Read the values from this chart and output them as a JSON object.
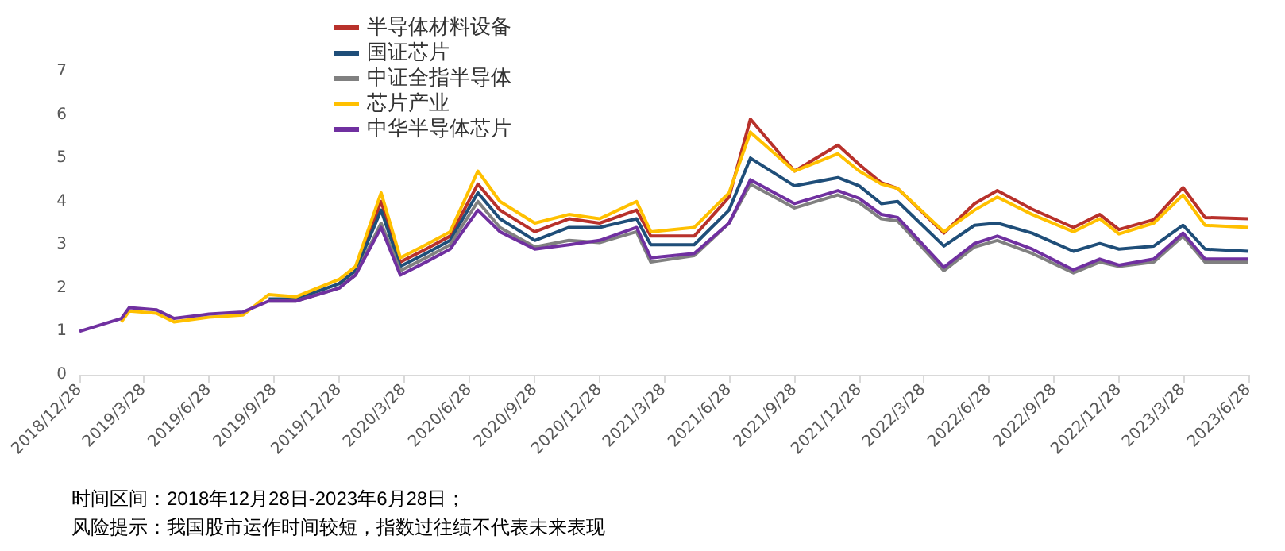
{
  "chart_data": {
    "type": "line",
    "x": [
      "2018-12-28",
      "2019-02-25",
      "2019-03-08",
      "2019-04-15",
      "2019-05-10",
      "2019-06-28",
      "2019-08-15",
      "2019-09-20",
      "2019-10-28",
      "2019-12-28",
      "2020-01-20",
      "2020-02-25",
      "2020-03-23",
      "2020-04-28",
      "2020-06-01",
      "2020-07-10",
      "2020-08-10",
      "2020-09-28",
      "2020-11-15",
      "2020-12-28",
      "2021-02-18",
      "2021-03-10",
      "2021-05-10",
      "2021-06-28",
      "2021-07-28",
      "2021-09-28",
      "2021-11-28",
      "2021-12-28",
      "2022-01-28",
      "2022-02-20",
      "2022-04-26",
      "2022-06-08",
      "2022-07-10",
      "2022-08-28",
      "2022-10-25",
      "2022-12-01",
      "2022-12-28",
      "2023-02-15",
      "2023-03-28",
      "2023-04-28",
      "2023-06-28"
    ],
    "series": [
      {
        "name": "半导体材料设备",
        "color": "#b8312b",
        "values": [
          null,
          null,
          null,
          null,
          null,
          null,
          null,
          null,
          null,
          2.1,
          2.4,
          4.0,
          2.6,
          2.9,
          3.2,
          4.4,
          3.8,
          3.3,
          3.6,
          3.5,
          3.8,
          3.2,
          3.2,
          4.1,
          5.9,
          4.7,
          5.3,
          4.85,
          4.43,
          4.3,
          3.27,
          3.95,
          4.25,
          3.82,
          3.4,
          3.7,
          3.35,
          3.58,
          4.32,
          3.63,
          3.6
        ]
      },
      {
        "name": "国证芯片",
        "color": "#1f4e79",
        "values": [
          null,
          null,
          null,
          null,
          null,
          null,
          null,
          1.75,
          1.75,
          2.1,
          2.4,
          3.8,
          2.5,
          2.8,
          3.1,
          4.2,
          3.6,
          3.1,
          3.4,
          3.4,
          3.6,
          3.0,
          3.0,
          3.8,
          5.0,
          4.36,
          4.55,
          4.36,
          3.95,
          4.0,
          2.97,
          3.45,
          3.5,
          3.27,
          2.85,
          3.03,
          2.9,
          2.97,
          3.45,
          2.9,
          2.85
        ]
      },
      {
        "name": "中证全指半导体",
        "color": "#808080",
        "values": [
          null,
          null,
          null,
          null,
          null,
          null,
          null,
          1.7,
          1.7,
          2.0,
          2.3,
          3.5,
          2.4,
          2.7,
          3.0,
          4.0,
          3.4,
          2.95,
          3.1,
          3.05,
          3.3,
          2.6,
          2.75,
          3.5,
          4.4,
          3.85,
          4.15,
          3.97,
          3.6,
          3.55,
          2.4,
          2.95,
          3.1,
          2.8,
          2.35,
          2.6,
          2.5,
          2.6,
          3.2,
          2.6,
          2.6
        ]
      },
      {
        "name": "芯片产业",
        "color": "#ffc000",
        "values": [
          null,
          1.22,
          1.47,
          1.42,
          1.22,
          1.33,
          1.38,
          1.85,
          1.8,
          2.2,
          2.5,
          4.2,
          2.7,
          3.0,
          3.3,
          4.7,
          4.0,
          3.5,
          3.7,
          3.6,
          4.0,
          3.3,
          3.4,
          4.2,
          5.6,
          4.7,
          5.1,
          4.7,
          4.4,
          4.3,
          3.3,
          3.8,
          4.1,
          3.7,
          3.3,
          3.6,
          3.25,
          3.5,
          4.15,
          3.45,
          3.4
        ]
      },
      {
        "name": "中华半导体芯片",
        "color": "#7030a0",
        "values": [
          1.0,
          1.3,
          1.55,
          1.5,
          1.3,
          1.4,
          1.45,
          1.7,
          1.7,
          2.0,
          2.3,
          3.4,
          2.3,
          2.6,
          2.9,
          3.8,
          3.3,
          2.9,
          3.0,
          3.1,
          3.4,
          2.7,
          2.8,
          3.5,
          4.5,
          3.95,
          4.25,
          4.07,
          3.7,
          3.63,
          2.48,
          3.03,
          3.2,
          2.9,
          2.42,
          2.67,
          2.53,
          2.67,
          3.27,
          2.67,
          2.67
        ]
      }
    ],
    "xlim": [
      "2018-12-28",
      "2023-06-28"
    ],
    "xticks": [
      {
        "value": "2018-12-28",
        "label": "2018/12/28"
      },
      {
        "value": "2019-03-28",
        "label": "2019/3/28"
      },
      {
        "value": "2019-06-28",
        "label": "2019/6/28"
      },
      {
        "value": "2019-09-28",
        "label": "2019/9/28"
      },
      {
        "value": "2019-12-28",
        "label": "2019/12/28"
      },
      {
        "value": "2020-03-28",
        "label": "2020/3/28"
      },
      {
        "value": "2020-06-28",
        "label": "2020/6/28"
      },
      {
        "value": "2020-09-28",
        "label": "2020/9/28"
      },
      {
        "value": "2020-12-28",
        "label": "2020/12/28"
      },
      {
        "value": "2021-03-28",
        "label": "2021/3/28"
      },
      {
        "value": "2021-06-28",
        "label": "2021/6/28"
      },
      {
        "value": "2021-09-28",
        "label": "2021/9/28"
      },
      {
        "value": "2021-12-28",
        "label": "2021/12/28"
      },
      {
        "value": "2022-03-28",
        "label": "2022/3/28"
      },
      {
        "value": "2022-06-28",
        "label": "2022/6/28"
      },
      {
        "value": "2022-09-28",
        "label": "2022/9/28"
      },
      {
        "value": "2022-12-28",
        "label": "2022/12/28"
      },
      {
        "value": "2023-03-28",
        "label": "2023/3/28"
      },
      {
        "value": "2023-06-28",
        "label": "2023/6/28"
      }
    ],
    "ylim": [
      0,
      7
    ],
    "yticks": [
      0,
      1,
      2,
      3,
      4,
      5,
      6,
      7
    ],
    "grid": false,
    "legend": "top",
    "marker": "none",
    "line_style": "solid",
    "annotations": [
      "时间区间：2018年12月28日-2023年6月28日；",
      "风险提示：我国股市运作时间较短，指数过往绩不代表未来表现"
    ]
  }
}
